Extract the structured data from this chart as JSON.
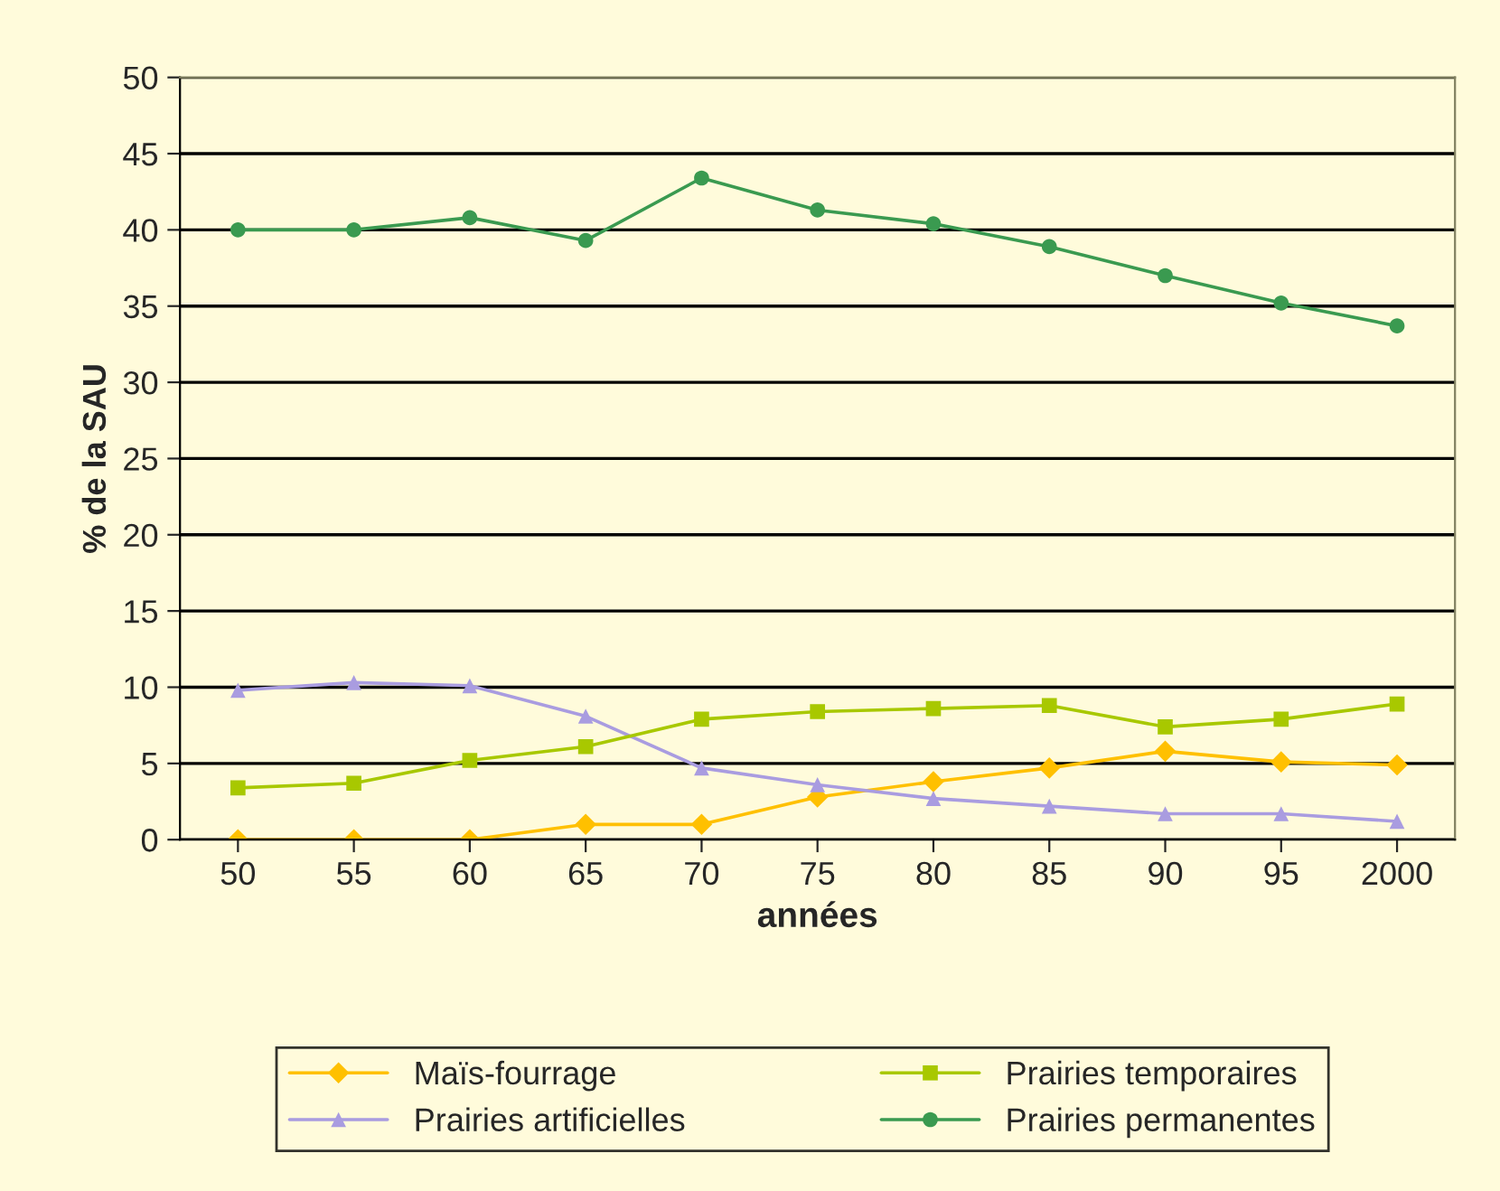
{
  "chart_data": {
    "type": "line",
    "xlabel": "années",
    "ylabel": "% de la SAU",
    "categories": [
      "50",
      "55",
      "60",
      "65",
      "70",
      "75",
      "80",
      "85",
      "90",
      "95",
      "2000"
    ],
    "series": [
      {
        "name": "Maïs-fourrage",
        "color": "#ffc000",
        "marker": "diamond",
        "values": [
          0,
          0,
          0,
          1.0,
          1.0,
          2.8,
          3.8,
          4.7,
          5.8,
          5.1,
          4.9
        ]
      },
      {
        "name": "Prairies artificielles",
        "color": "#a99ce0",
        "marker": "triangle",
        "values": [
          9.8,
          10.3,
          10.1,
          8.1,
          4.7,
          3.6,
          2.7,
          2.2,
          1.7,
          1.7,
          1.2
        ]
      },
      {
        "name": "Prairies temporaires",
        "color": "#a8c800",
        "marker": "square",
        "values": [
          3.4,
          3.7,
          5.2,
          6.1,
          7.9,
          8.4,
          8.6,
          8.8,
          7.4,
          7.9,
          8.9
        ]
      },
      {
        "name": "Prairies permanentes",
        "color": "#3a9a50",
        "marker": "circle",
        "values": [
          40,
          40,
          40.8,
          39.3,
          43.4,
          41.3,
          40.4,
          38.9,
          37.0,
          35.2,
          33.7
        ]
      }
    ],
    "ylim": [
      0,
      50
    ],
    "yticks": [
      0,
      5,
      10,
      15,
      20,
      25,
      30,
      35,
      40,
      45,
      50
    ],
    "grid": "y",
    "legend": "bottom",
    "line_style": "solid"
  }
}
